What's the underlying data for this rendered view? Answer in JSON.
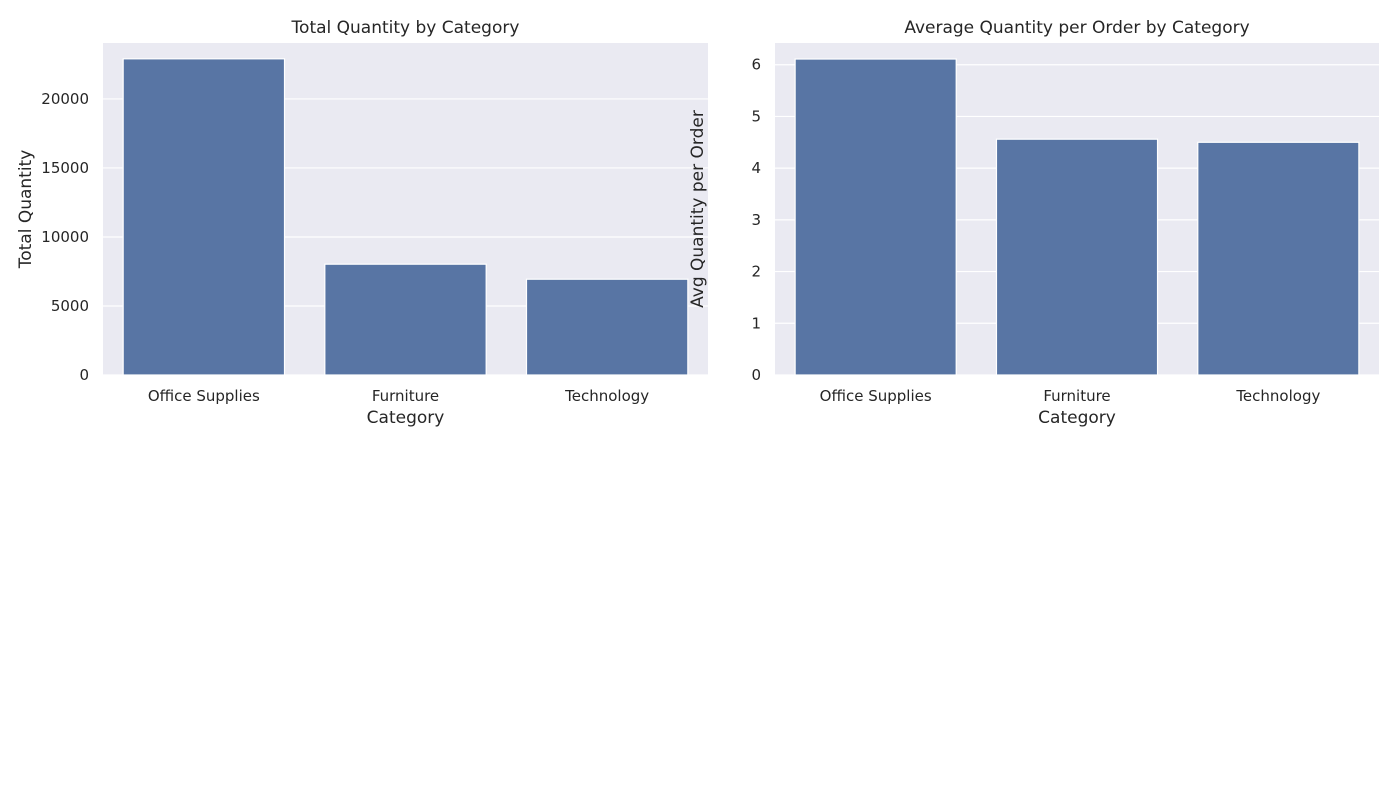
{
  "chart_data": [
    {
      "type": "bar",
      "title": "Total Quantity by Category",
      "xlabel": "Category",
      "ylabel": "Total Quantity",
      "categories": [
        "Office Supplies",
        "Furniture",
        "Technology"
      ],
      "values": [
        22906,
        8028,
        6939
      ],
      "ylim": [
        0,
        24052
      ],
      "yticks": [
        0,
        5000,
        10000,
        15000,
        20000
      ],
      "ytick_labels": [
        "0",
        "5000",
        "10000",
        "15000",
        "20000"
      ],
      "grid": true,
      "color": "#5875a4"
    },
    {
      "type": "bar",
      "title": "Average Quantity per Order by Category",
      "xlabel": "Category",
      "ylabel": "Avg Quantity per Order",
      "categories": [
        "Office Supplies",
        "Furniture",
        "Technology"
      ],
      "values": [
        6.11,
        4.56,
        4.5
      ],
      "ylim": [
        0,
        6.42
      ],
      "yticks": [
        0,
        1,
        2,
        3,
        4,
        5,
        6
      ],
      "ytick_labels": [
        "0",
        "1",
        "2",
        "3",
        "4",
        "5",
        "6"
      ],
      "grid": true,
      "color": "#5875a4"
    }
  ]
}
